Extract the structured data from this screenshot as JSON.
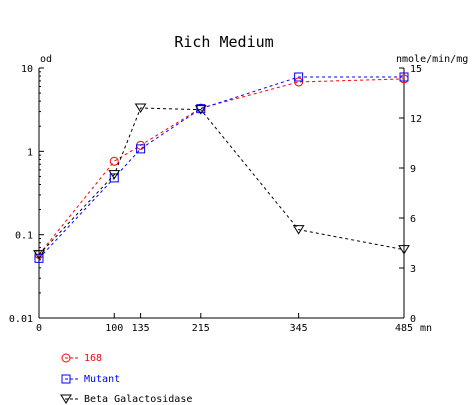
{
  "chart_data": {
    "type": "line",
    "title": "Rich Medium",
    "left_axis": {
      "unit_label": "od",
      "scale": "log",
      "range": [
        0.01,
        10
      ],
      "ticks": [
        {
          "value": 0.01,
          "label": "0.01"
        },
        {
          "value": 0.1,
          "label": "0.1"
        },
        {
          "value": 1,
          "label": "1"
        },
        {
          "value": 10,
          "label": "10"
        }
      ]
    },
    "right_axis": {
      "unit_label": "nmole/min/mg",
      "scale": "linear",
      "range": [
        0,
        15
      ],
      "ticks": [
        {
          "value": 0,
          "label": "0"
        },
        {
          "value": 3,
          "label": "3"
        },
        {
          "value": 6,
          "label": "6"
        },
        {
          "value": 9,
          "label": "9"
        },
        {
          "value": 12,
          "label": "12"
        },
        {
          "value": 15,
          "label": "15"
        }
      ]
    },
    "x_axis": {
      "unit_label": "mn",
      "range": [
        0,
        485
      ],
      "ticks": [
        {
          "value": 0,
          "label": "0"
        },
        {
          "value": 100,
          "label": "100"
        },
        {
          "value": 135,
          "label": "135"
        },
        {
          "value": 215,
          "label": "215"
        },
        {
          "value": 345,
          "label": "345"
        },
        {
          "value": 485,
          "label": "485"
        }
      ]
    },
    "series": [
      {
        "name": "168",
        "axis": "left",
        "marker": "circle",
        "color": "#ff0000",
        "points": [
          [
            0,
            0.058
          ],
          [
            100,
            0.76
          ],
          [
            135,
            1.18
          ],
          [
            215,
            3.3
          ],
          [
            345,
            6.8
          ],
          [
            485,
            7.4
          ]
        ]
      },
      {
        "name": "Mutant",
        "axis": "left",
        "marker": "square",
        "color": "#0000ff",
        "points": [
          [
            0,
            0.052
          ],
          [
            100,
            0.48
          ],
          [
            135,
            1.07
          ],
          [
            215,
            3.25
          ],
          [
            345,
            7.8
          ],
          [
            485,
            7.8
          ]
        ]
      },
      {
        "name": "Beta Galactosidase",
        "axis": "right",
        "marker": "triangle-down",
        "color": "#000000",
        "points": [
          [
            0,
            3.8
          ],
          [
            100,
            8.6
          ],
          [
            135,
            12.6
          ],
          [
            215,
            12.5
          ],
          [
            345,
            5.3
          ],
          [
            485,
            4.1
          ]
        ]
      }
    ]
  }
}
